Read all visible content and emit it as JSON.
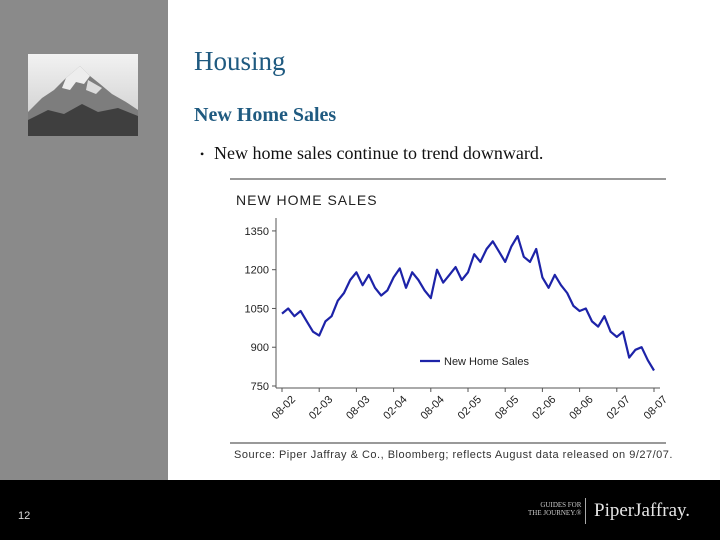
{
  "slide": {
    "title": "Housing",
    "subtitle": "New Home Sales",
    "bullet": "New home sales continue to trend downward.",
    "source": "Source: Piper Jaffray & Co., Bloomberg; reflects August data released on 9/27/07.",
    "page_number": "12"
  },
  "logos": {
    "guides_line1": "GUIDES FOR",
    "guides_line2": "THE JOURNEY.®",
    "company": "PiperJaffray."
  },
  "colors": {
    "sidebar": "#8a8a8a",
    "title": "#1f5a80",
    "series": "#1d23a8",
    "footer": "#000000"
  },
  "chart_data": {
    "type": "line",
    "title": "NEW HOME SALES",
    "xlabel": "",
    "ylabel": "",
    "ylim": [
      750,
      1400
    ],
    "yticks": [
      750,
      900,
      1050,
      1200,
      1350
    ],
    "xticks": [
      "08-02",
      "02-03",
      "08-03",
      "02-04",
      "08-04",
      "02-05",
      "08-05",
      "02-06",
      "08-06",
      "02-07",
      "08-07"
    ],
    "grid": false,
    "legend_position": "bottom-right",
    "series": [
      {
        "name": "New Home Sales",
        "x": [
          "08-02",
          "09-02",
          "10-02",
          "11-02",
          "12-02",
          "01-03",
          "02-03",
          "03-03",
          "04-03",
          "05-03",
          "06-03",
          "07-03",
          "08-03",
          "09-03",
          "10-03",
          "11-03",
          "12-03",
          "01-04",
          "02-04",
          "03-04",
          "04-04",
          "05-04",
          "06-04",
          "07-04",
          "08-04",
          "09-04",
          "10-04",
          "11-04",
          "12-04",
          "01-05",
          "02-05",
          "03-05",
          "04-05",
          "05-05",
          "06-05",
          "07-05",
          "08-05",
          "09-05",
          "10-05",
          "11-05",
          "12-05",
          "01-06",
          "02-06",
          "03-06",
          "04-06",
          "05-06",
          "06-06",
          "07-06",
          "08-06",
          "09-06",
          "10-06",
          "11-06",
          "12-06",
          "01-07",
          "02-07",
          "03-07",
          "04-07",
          "05-07",
          "06-07",
          "07-07",
          "08-07"
        ],
        "values": [
          1030,
          1050,
          1020,
          1040,
          1000,
          960,
          945,
          1000,
          1020,
          1080,
          1110,
          1160,
          1190,
          1140,
          1180,
          1130,
          1100,
          1120,
          1170,
          1205,
          1130,
          1190,
          1160,
          1120,
          1090,
          1200,
          1150,
          1180,
          1210,
          1160,
          1190,
          1260,
          1230,
          1280,
          1310,
          1270,
          1230,
          1290,
          1330,
          1250,
          1230,
          1280,
          1170,
          1130,
          1180,
          1140,
          1110,
          1060,
          1040,
          1050,
          1000,
          980,
          1020,
          960,
          940,
          960,
          860,
          890,
          900,
          850,
          810
        ]
      }
    ]
  }
}
